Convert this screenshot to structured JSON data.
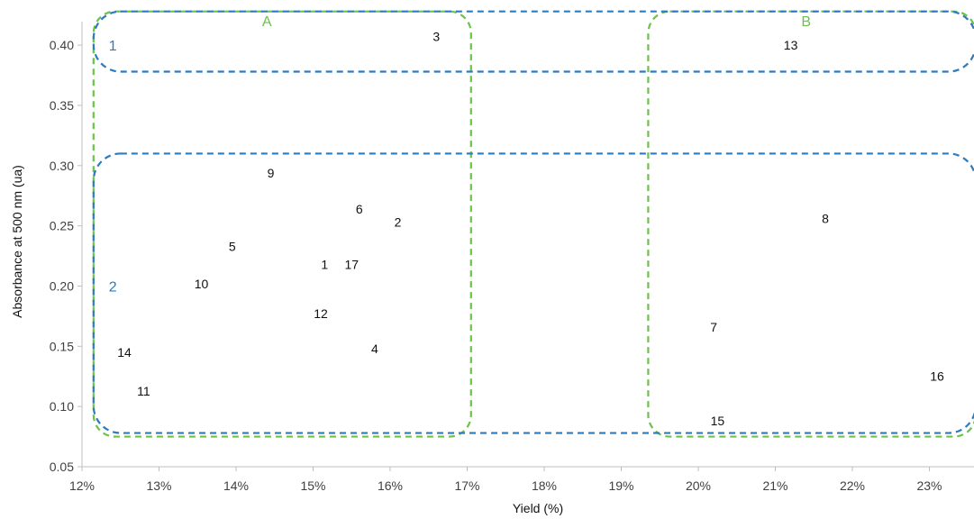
{
  "chart_data": {
    "type": "scatter",
    "xlabel": "Yield (%)",
    "ylabel": "Absorbance  at 500 nm (ua)",
    "xlim": [
      12,
      23.5
    ],
    "ylim": [
      0.05,
      0.43
    ],
    "xticks": [
      12,
      13,
      14,
      15,
      16,
      17,
      18,
      19,
      20,
      21,
      22,
      23
    ],
    "xtick_labels": [
      "12%",
      "13%",
      "14%",
      "15%",
      "16%",
      "17%",
      "18%",
      "19%",
      "20%",
      "21%",
      "22%",
      "23%"
    ],
    "yticks": [
      0.05,
      0.1,
      0.15,
      0.2,
      0.25,
      0.3,
      0.35,
      0.4
    ],
    "ytick_labels": [
      "0.05",
      "0.10",
      "0.15",
      "0.20",
      "0.25",
      "0.30",
      "0.35",
      "0.40"
    ],
    "grid": false,
    "points": [
      {
        "label": "1",
        "x": 15.15,
        "y": 0.218
      },
      {
        "label": "2",
        "x": 16.1,
        "y": 0.253
      },
      {
        "label": "3",
        "x": 16.6,
        "y": 0.407
      },
      {
        "label": "4",
        "x": 15.8,
        "y": 0.148
      },
      {
        "label": "5",
        "x": 13.95,
        "y": 0.233
      },
      {
        "label": "6",
        "x": 15.6,
        "y": 0.264
      },
      {
        "label": "7",
        "x": 20.2,
        "y": 0.166
      },
      {
        "label": "8",
        "x": 21.65,
        "y": 0.256
      },
      {
        "label": "9",
        "x": 14.45,
        "y": 0.294
      },
      {
        "label": "10",
        "x": 13.55,
        "y": 0.202
      },
      {
        "label": "11",
        "x": 12.8,
        "y": 0.113
      },
      {
        "label": "12",
        "x": 15.1,
        "y": 0.177
      },
      {
        "label": "13",
        "x": 21.2,
        "y": 0.4
      },
      {
        "label": "14",
        "x": 12.55,
        "y": 0.145
      },
      {
        "label": "15",
        "x": 20.25,
        "y": 0.088
      },
      {
        "label": "16",
        "x": 23.1,
        "y": 0.125
      },
      {
        "label": "17",
        "x": 15.5,
        "y": 0.218
      }
    ],
    "groups": [
      {
        "label": "A",
        "color": "#6cc24a",
        "style": "dashed",
        "x_range": [
          12.15,
          17.05
        ],
        "y_range": [
          0.075,
          0.428
        ],
        "label_x": 14.4
      },
      {
        "label": "B",
        "color": "#6cc24a",
        "style": "dashed",
        "x_range": [
          19.35,
          23.6
        ],
        "y_range": [
          0.075,
          0.428
        ],
        "label_x": 21.4
      },
      {
        "label": "1",
        "color": "#2a7bc0",
        "style": "dashed",
        "x_range": [
          12.15,
          23.6
        ],
        "y_range": [
          0.378,
          0.428
        ],
        "label_pos": [
          12.4,
          0.4
        ]
      },
      {
        "label": "2",
        "color": "#2a7bc0",
        "style": "dashed",
        "x_range": [
          12.15,
          23.6
        ],
        "y_range": [
          0.078,
          0.31
        ],
        "label_pos": [
          12.4,
          0.2
        ]
      }
    ]
  }
}
